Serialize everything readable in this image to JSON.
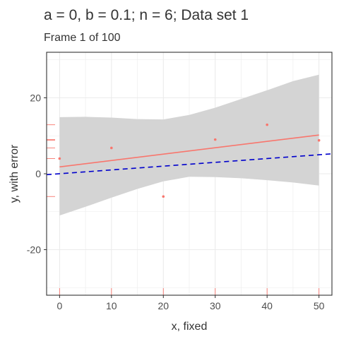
{
  "chart_data": {
    "type": "scatter",
    "title": "a = 0, b = 0.1; n = 6; Data set 1",
    "subtitle": "Frame 1 of 100",
    "xlabel": "x, fixed",
    "ylabel": "y, with error",
    "xlim": [
      -2.5,
      52.5
    ],
    "ylim": [
      -32,
      32
    ],
    "x_ticks": [
      0,
      10,
      20,
      30,
      40,
      50
    ],
    "x_tick_labels": [
      "0",
      "10",
      "20",
      "30",
      "40",
      "50"
    ],
    "y_ticks": [
      -20,
      0,
      20
    ],
    "y_tick_labels": [
      "-20",
      "0",
      "20"
    ],
    "grid": true,
    "points": {
      "x": [
        0,
        10,
        20,
        30,
        40,
        50
      ],
      "y": [
        4.0,
        6.8,
        -6.0,
        9.0,
        12.9,
        8.8
      ]
    },
    "fit_line": {
      "intercept": 1.8,
      "slope": 0.168
    },
    "confidence_band": {
      "x": [
        0,
        5,
        10,
        15,
        20,
        25,
        30,
        35,
        40,
        45,
        50
      ],
      "lower": [
        -11.0,
        -8.7,
        -6.3,
        -4.0,
        -2.0,
        -0.8,
        -0.9,
        -1.2,
        -1.7,
        -2.3,
        -3.1
      ],
      "upper": [
        14.9,
        15.0,
        14.8,
        14.4,
        14.3,
        15.5,
        17.4,
        19.7,
        22.0,
        24.4,
        26.1
      ]
    },
    "true_line": {
      "intercept": 0,
      "slope": 0.1
    },
    "colors": {
      "points": "#f8766d",
      "fit_line": "#f8766d",
      "band": "#d4d4d4",
      "true_line": "#0000cc",
      "panel_border": "#333333",
      "grid": "#ebebeb"
    }
  }
}
